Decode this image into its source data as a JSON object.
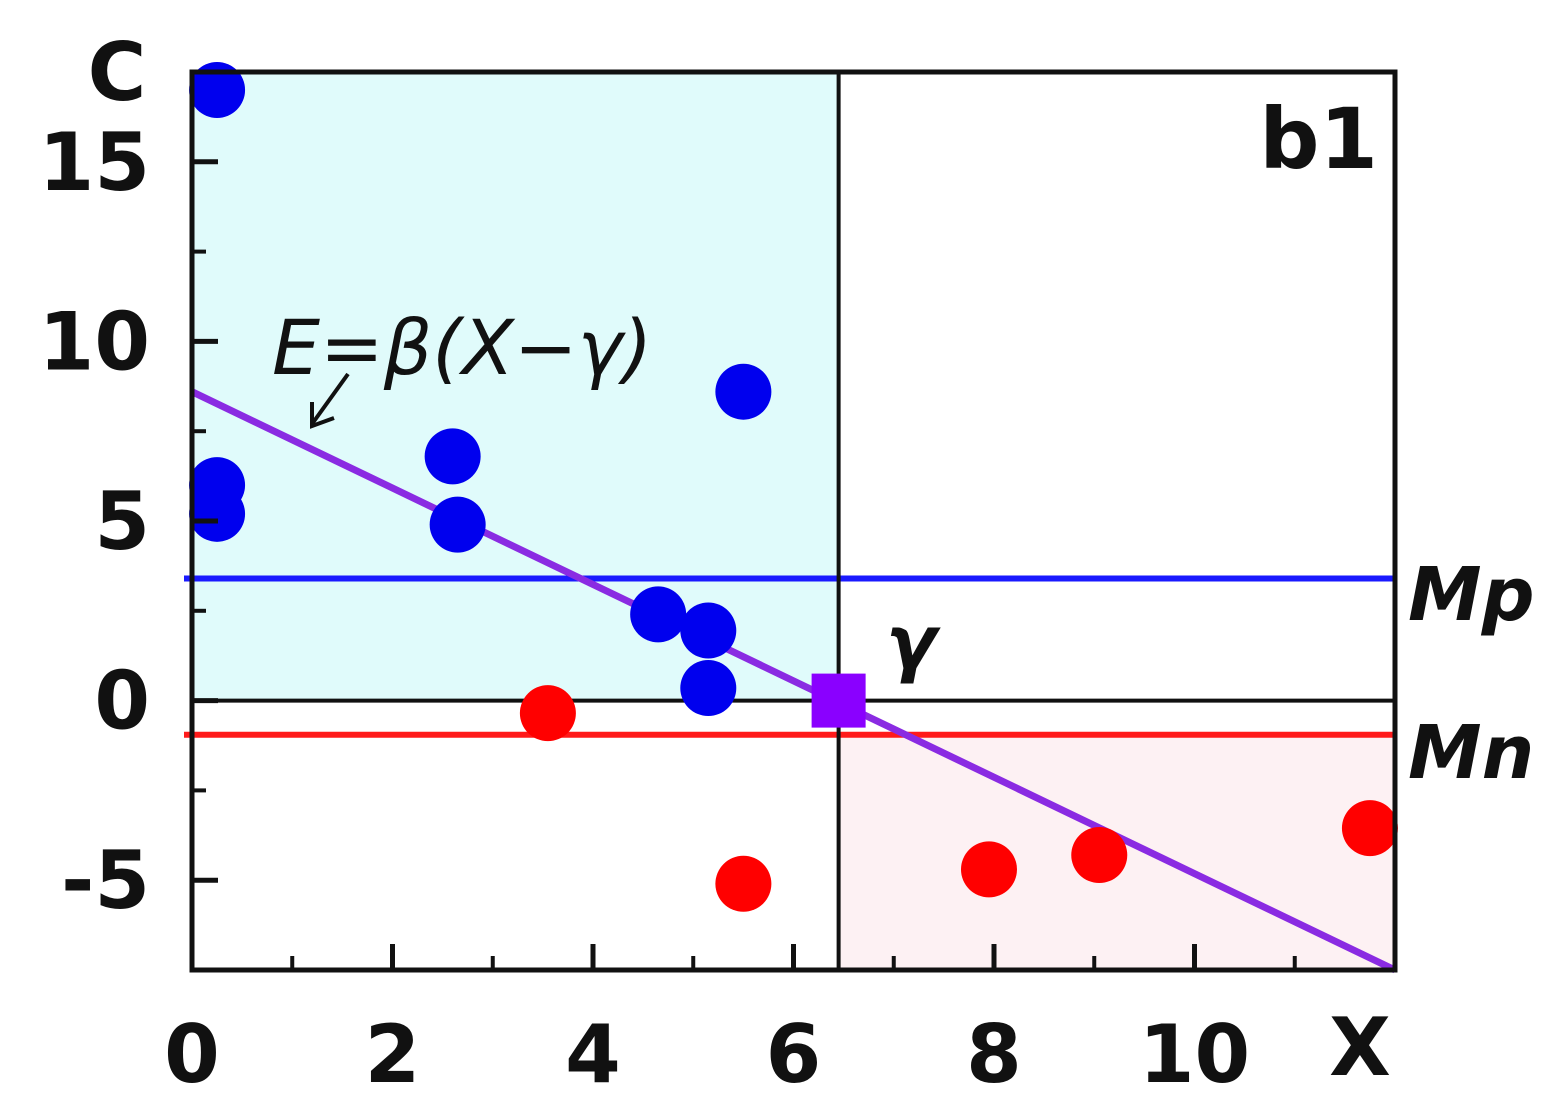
{
  "chart_data": {
    "type": "scatter",
    "title": "",
    "panel_label": "b1",
    "xlabel": "X",
    "ylabel": "C",
    "xlim": [
      0,
      12
    ],
    "ylim": [
      -7.5,
      17.5
    ],
    "x_ticks": [
      0,
      2,
      4,
      6,
      8,
      10
    ],
    "x_tick_labels": [
      "0",
      "2",
      "4",
      "6",
      "8",
      "10"
    ],
    "x_minor_ticks": [
      1,
      3,
      5,
      7,
      9,
      11
    ],
    "y_ticks": [
      -5,
      0,
      5,
      10,
      15
    ],
    "y_tick_labels": [
      "-5",
      "0",
      "5",
      "10",
      "15"
    ],
    "y_minor_ticks": [
      -2.5,
      2.5,
      7.5,
      12.5
    ],
    "grid": false,
    "gamma": {
      "x": 6.45,
      "y": 0,
      "label": "γ",
      "color": "#8a00ff"
    },
    "divider_x": 6.45,
    "regions": [
      {
        "x": [
          0,
          6.45
        ],
        "y": [
          0,
          17.5
        ],
        "color": "#e0fbfb"
      },
      {
        "x": [
          6.45,
          12
        ],
        "y": [
          -7.5,
          -1
        ],
        "color": "#fdf1f3"
      }
    ],
    "hlines": [
      {
        "y": 3.4,
        "label": "Mp",
        "color": "#1a1aff"
      },
      {
        "y": -0.95,
        "label": "Mn",
        "color": "#ff1a1a"
      }
    ],
    "fit_line": {
      "label": "E=β(X−γ)",
      "x": [
        0,
        12
      ],
      "y": [
        8.6,
        -7.5
      ],
      "color": "#8a2be2"
    },
    "series": [
      {
        "color": "#0000ee",
        "x": [
          0.25,
          0.25,
          0.25,
          2.6,
          2.65,
          4.65,
          5.15,
          5.15,
          5.5
        ],
        "y": [
          17.0,
          6.0,
          5.2,
          6.8,
          4.9,
          2.4,
          1.95,
          0.35,
          8.6
        ]
      },
      {
        "color": "#ff0000",
        "x": [
          3.55,
          5.5,
          7.95,
          9.05,
          11.75
        ],
        "y": [
          -0.35,
          -5.1,
          -4.7,
          -4.3,
          -3.55
        ]
      }
    ]
  }
}
